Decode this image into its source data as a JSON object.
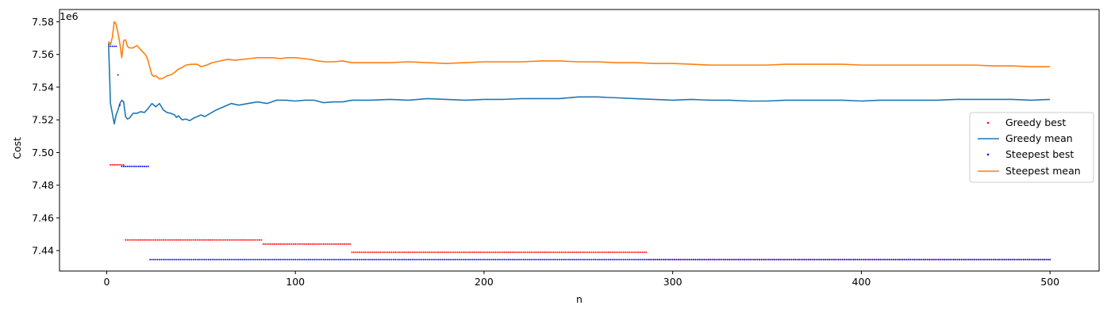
{
  "chart_data": {
    "type": "line",
    "xlabel": "n",
    "ylabel": "Cost",
    "offset_text": "1e6",
    "xlim": [
      -25,
      526
    ],
    "ylim": [
      7.4275,
      7.5875
    ],
    "y_scale_multiplier": 1000000,
    "x_ticks": [
      0,
      100,
      200,
      300,
      400,
      500
    ],
    "x_tick_labels": [
      "0",
      "100",
      "200",
      "300",
      "400",
      "500"
    ],
    "y_ticks": [
      7.44,
      7.46,
      7.48,
      7.5,
      7.52,
      7.54,
      7.56,
      7.58
    ],
    "y_tick_labels": [
      "7.44",
      "7.46",
      "7.48",
      "7.50",
      "7.52",
      "7.54",
      "7.56",
      "7.58"
    ],
    "grid": false,
    "legend_position": "center-right",
    "series": [
      {
        "name": "Greedy best",
        "kind": "scatter",
        "color": "#ff0000",
        "step_segments": [
          {
            "from": 1,
            "to": 1,
            "y": 7.565
          },
          {
            "from": 2,
            "to": 9,
            "y": 7.4925
          },
          {
            "from": 10,
            "to": 82,
            "y": 7.4465
          },
          {
            "from": 83,
            "to": 129,
            "y": 7.444
          },
          {
            "from": 130,
            "to": 286,
            "y": 7.439
          },
          {
            "from": 287,
            "to": 500,
            "y": 7.4345
          }
        ]
      },
      {
        "name": "Greedy mean",
        "kind": "line",
        "color": "#1f77b4",
        "points": [
          [
            1,
            7.567
          ],
          [
            2,
            7.53
          ],
          [
            3,
            7.524
          ],
          [
            4,
            7.5175
          ],
          [
            5,
            7.523
          ],
          [
            6,
            7.526
          ],
          [
            7,
            7.53
          ],
          [
            8,
            7.532
          ],
          [
            9,
            7.531
          ],
          [
            10,
            7.522
          ],
          [
            11,
            7.5205
          ],
          [
            12,
            7.521
          ],
          [
            14,
            7.524
          ],
          [
            16,
            7.524
          ],
          [
            18,
            7.525
          ],
          [
            20,
            7.5245
          ],
          [
            22,
            7.527
          ],
          [
            24,
            7.53
          ],
          [
            26,
            7.528
          ],
          [
            28,
            7.53
          ],
          [
            30,
            7.526
          ],
          [
            32,
            7.5245
          ],
          [
            34,
            7.524
          ],
          [
            36,
            7.523
          ],
          [
            37,
            7.5215
          ],
          [
            38,
            7.5225
          ],
          [
            40,
            7.52
          ],
          [
            42,
            7.5205
          ],
          [
            44,
            7.5195
          ],
          [
            46,
            7.521
          ],
          [
            48,
            7.522
          ],
          [
            50,
            7.523
          ],
          [
            52,
            7.522
          ],
          [
            55,
            7.524
          ],
          [
            58,
            7.526
          ],
          [
            62,
            7.528
          ],
          [
            66,
            7.53
          ],
          [
            70,
            7.529
          ],
          [
            75,
            7.53
          ],
          [
            80,
            7.531
          ],
          [
            85,
            7.53
          ],
          [
            90,
            7.532
          ],
          [
            95,
            7.532
          ],
          [
            100,
            7.5315
          ],
          [
            105,
            7.532
          ],
          [
            110,
            7.532
          ],
          [
            115,
            7.5305
          ],
          [
            120,
            7.531
          ],
          [
            125,
            7.531
          ],
          [
            130,
            7.532
          ],
          [
            140,
            7.532
          ],
          [
            150,
            7.5325
          ],
          [
            160,
            7.532
          ],
          [
            170,
            7.533
          ],
          [
            180,
            7.5325
          ],
          [
            190,
            7.532
          ],
          [
            200,
            7.5325
          ],
          [
            210,
            7.5325
          ],
          [
            220,
            7.533
          ],
          [
            230,
            7.533
          ],
          [
            240,
            7.533
          ],
          [
            250,
            7.534
          ],
          [
            260,
            7.534
          ],
          [
            270,
            7.5335
          ],
          [
            280,
            7.533
          ],
          [
            290,
            7.5325
          ],
          [
            300,
            7.532
          ],
          [
            310,
            7.5325
          ],
          [
            320,
            7.532
          ],
          [
            330,
            7.532
          ],
          [
            340,
            7.5315
          ],
          [
            350,
            7.5315
          ],
          [
            360,
            7.532
          ],
          [
            370,
            7.532
          ],
          [
            380,
            7.532
          ],
          [
            390,
            7.532
          ],
          [
            400,
            7.5315
          ],
          [
            410,
            7.532
          ],
          [
            420,
            7.532
          ],
          [
            430,
            7.532
          ],
          [
            440,
            7.532
          ],
          [
            450,
            7.5325
          ],
          [
            460,
            7.5325
          ],
          [
            470,
            7.5325
          ],
          [
            480,
            7.5325
          ],
          [
            490,
            7.532
          ],
          [
            500,
            7.5325
          ]
        ]
      },
      {
        "name": "Steepest best",
        "kind": "scatter",
        "color": "#0000ff",
        "step_segments": [
          {
            "from": 2,
            "to": 5,
            "y": 7.565
          },
          {
            "from": 6,
            "to": 6,
            "y": 7.5475
          },
          {
            "from": 7,
            "to": 7,
            "y": 7.529
          },
          {
            "from": 8,
            "to": 22,
            "y": 7.4915
          },
          {
            "from": 23,
            "to": 500,
            "y": 7.4345
          }
        ]
      },
      {
        "name": "Steepest mean",
        "kind": "line",
        "color": "#ff7f0e",
        "points": [
          [
            1,
            7.568
          ],
          [
            2,
            7.566
          ],
          [
            3,
            7.5705
          ],
          [
            4,
            7.58
          ],
          [
            5,
            7.5785
          ],
          [
            6,
            7.573
          ],
          [
            7,
            7.5665
          ],
          [
            8,
            7.558
          ],
          [
            9,
            7.5685
          ],
          [
            10,
            7.569
          ],
          [
            11,
            7.565
          ],
          [
            12,
            7.564
          ],
          [
            14,
            7.564
          ],
          [
            16,
            7.5655
          ],
          [
            18,
            7.563
          ],
          [
            20,
            7.5605
          ],
          [
            21,
            7.559
          ],
          [
            22,
            7.556
          ],
          [
            23,
            7.5515
          ],
          [
            24,
            7.5475
          ],
          [
            25,
            7.5465
          ],
          [
            26,
            7.547
          ],
          [
            27,
            7.546
          ],
          [
            28,
            7.545
          ],
          [
            30,
            7.5455
          ],
          [
            32,
            7.547
          ],
          [
            34,
            7.5475
          ],
          [
            36,
            7.549
          ],
          [
            38,
            7.551
          ],
          [
            40,
            7.552
          ],
          [
            42,
            7.5535
          ],
          [
            45,
            7.554
          ],
          [
            48,
            7.554
          ],
          [
            50,
            7.5525
          ],
          [
            53,
            7.5535
          ],
          [
            56,
            7.555
          ],
          [
            60,
            7.556
          ],
          [
            64,
            7.557
          ],
          [
            68,
            7.5565
          ],
          [
            72,
            7.557
          ],
          [
            76,
            7.5575
          ],
          [
            80,
            7.558
          ],
          [
            84,
            7.558
          ],
          [
            88,
            7.558
          ],
          [
            92,
            7.5575
          ],
          [
            96,
            7.558
          ],
          [
            100,
            7.558
          ],
          [
            104,
            7.5575
          ],
          [
            108,
            7.557
          ],
          [
            112,
            7.556
          ],
          [
            116,
            7.5555
          ],
          [
            120,
            7.5555
          ],
          [
            125,
            7.556
          ],
          [
            130,
            7.555
          ],
          [
            140,
            7.555
          ],
          [
            150,
            7.555
          ],
          [
            160,
            7.5555
          ],
          [
            170,
            7.555
          ],
          [
            180,
            7.5545
          ],
          [
            190,
            7.555
          ],
          [
            200,
            7.5555
          ],
          [
            210,
            7.5555
          ],
          [
            220,
            7.5555
          ],
          [
            230,
            7.556
          ],
          [
            240,
            7.556
          ],
          [
            250,
            7.5555
          ],
          [
            260,
            7.5555
          ],
          [
            270,
            7.555
          ],
          [
            280,
            7.555
          ],
          [
            290,
            7.5545
          ],
          [
            300,
            7.5545
          ],
          [
            310,
            7.554
          ],
          [
            320,
            7.5535
          ],
          [
            330,
            7.5535
          ],
          [
            340,
            7.5535
          ],
          [
            350,
            7.5535
          ],
          [
            360,
            7.554
          ],
          [
            370,
            7.554
          ],
          [
            380,
            7.554
          ],
          [
            390,
            7.554
          ],
          [
            400,
            7.5535
          ],
          [
            410,
            7.5535
          ],
          [
            420,
            7.5535
          ],
          [
            430,
            7.5535
          ],
          [
            440,
            7.5535
          ],
          [
            450,
            7.5535
          ],
          [
            460,
            7.5535
          ],
          [
            470,
            7.553
          ],
          [
            480,
            7.553
          ],
          [
            490,
            7.5525
          ],
          [
            500,
            7.5525
          ]
        ]
      }
    ]
  }
}
